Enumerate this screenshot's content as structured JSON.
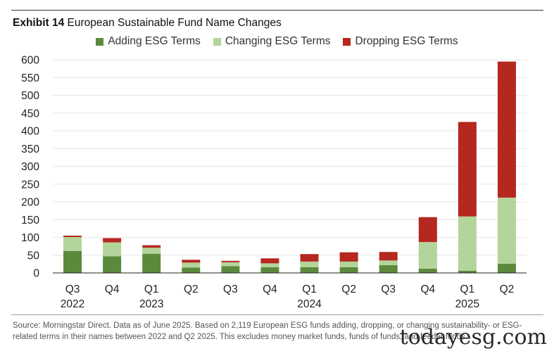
{
  "title": {
    "prefix": "Exhibit 14",
    "text": "European Sustainable Fund Name Changes"
  },
  "colors": {
    "adding": "#5b8a3c",
    "changing": "#b3d49a",
    "dropping": "#b5271f",
    "gridline": "#e6e6e6",
    "axis": "#222222"
  },
  "chart_data": {
    "type": "bar",
    "stacked": true,
    "title": "European Sustainable Fund Name Changes",
    "xlabel": "",
    "ylabel": "",
    "ylim": [
      0,
      600
    ],
    "yticks": [
      0,
      50,
      100,
      150,
      200,
      250,
      300,
      350,
      400,
      450,
      500,
      550,
      600
    ],
    "categories": [
      "Q3",
      "Q4",
      "Q1",
      "Q2",
      "Q3",
      "Q4",
      "Q1",
      "Q2",
      "Q3",
      "Q4",
      "Q1",
      "Q2"
    ],
    "year_labels": [
      {
        "label": "2022",
        "index": 0
      },
      {
        "label": "2023",
        "index": 2
      },
      {
        "label": "2024",
        "index": 6
      },
      {
        "label": "2025",
        "index": 10
      }
    ],
    "legend_position": "top-center",
    "grid": true,
    "series": [
      {
        "name": "Adding ESG Terms",
        "color_key": "adding",
        "values": [
          62,
          47,
          54,
          15,
          19,
          16,
          16,
          16,
          22,
          12,
          6,
          26
        ]
      },
      {
        "name": "Changing ESG Terms",
        "color_key": "changing",
        "values": [
          39,
          39,
          17,
          14,
          11,
          11,
          16,
          16,
          13,
          75,
          153,
          186
        ]
      },
      {
        "name": "Dropping ESG Terms",
        "color_key": "dropping",
        "values": [
          4,
          12,
          7,
          8,
          4,
          14,
          21,
          26,
          24,
          70,
          266,
          383
        ]
      }
    ]
  },
  "source": "Source: Morningstar Direct. Data as of June 2025. Based on 2,119 European ESG funds adding, dropping, or changing sustainability- or ESG-related terms in their names between 2022 and Q2 2025. This excludes money market funds, funds of funds, and feeder funds.",
  "watermark": "todayesg.com"
}
